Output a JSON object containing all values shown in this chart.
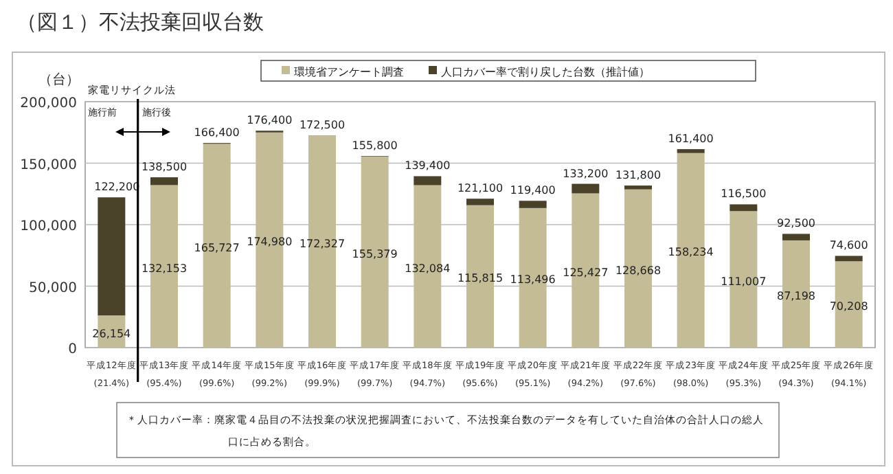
{
  "chart_data": {
    "type": "bar",
    "stacked": true,
    "title": "（図１）不法投棄回収台数",
    "ylabel": "（台）",
    "categories": [
      "平成12年度\n(21.4%)",
      "平成13年度\n(95.4%)",
      "平成14年度\n(99.6%)",
      "平成15年度\n(99.2%)",
      "平成16年度\n(99.9%)",
      "平成17年度\n(99.7%)",
      "平成18年度\n(94.7%)",
      "平成19年度\n(95.6%)",
      "平成20年度\n(95.1%)",
      "平成21年度\n(94.2%)",
      "平成22年度\n(97.6%)",
      "平成23年度\n(98.0%)",
      "平成24年度\n(95.3%)",
      "平成25年度\n(94.3%)",
      "平成26年度\n(94.1%)"
    ],
    "series": [
      {
        "name": "環境省アンケート調査",
        "color": "#c4bc96",
        "values": [
          26154,
          132153,
          165727,
          174980,
          172327,
          155379,
          132084,
          115815,
          113496,
          125427,
          128668,
          158234,
          111007,
          87198,
          70208
        ],
        "value_labels": [
          "26,154",
          "132,153",
          "165,727",
          "174,980",
          "172,327",
          "155,379",
          "132,084",
          "115,815",
          "113,496",
          "125,427",
          "128,668",
          "158,234",
          "111,007",
          "87,198",
          "70,208"
        ]
      },
      {
        "name": "人口カバー率で割り戻した台数（推計値）",
        "color": "#4a4228",
        "values": [
          96046,
          6347,
          673,
          1420,
          173,
          421,
          7316,
          5285,
          5904,
          7773,
          3132,
          3166,
          5493,
          5302,
          4392
        ]
      }
    ],
    "totals": [
      "122,200",
      "138,500",
      "166,400",
      "176,400",
      "172,500",
      "155,800",
      "139,400",
      "121,100",
      "119,400",
      "133,200",
      "131,800",
      "161,400",
      "116,500",
      "92,500",
      "74,600"
    ],
    "ylim": [
      0,
      200000
    ],
    "yticks": [
      {
        "value": 0,
        "label": "0"
      },
      {
        "value": 50000,
        "label": "50,000"
      },
      {
        "value": 100000,
        "label": "100,000"
      },
      {
        "value": 150000,
        "label": "150,000"
      },
      {
        "value": 200000,
        "label": "200,000"
      }
    ],
    "grid": "y",
    "legend": "top",
    "annotations": [
      "家電リサイクル法",
      "施行前",
      "施行後",
      "＊人口カバー率：廃家電４品目の不法投棄の状況把握調査において、不法投棄台数のデータを有していた自治体の合計人口の総人口に占める割合。"
    ]
  }
}
